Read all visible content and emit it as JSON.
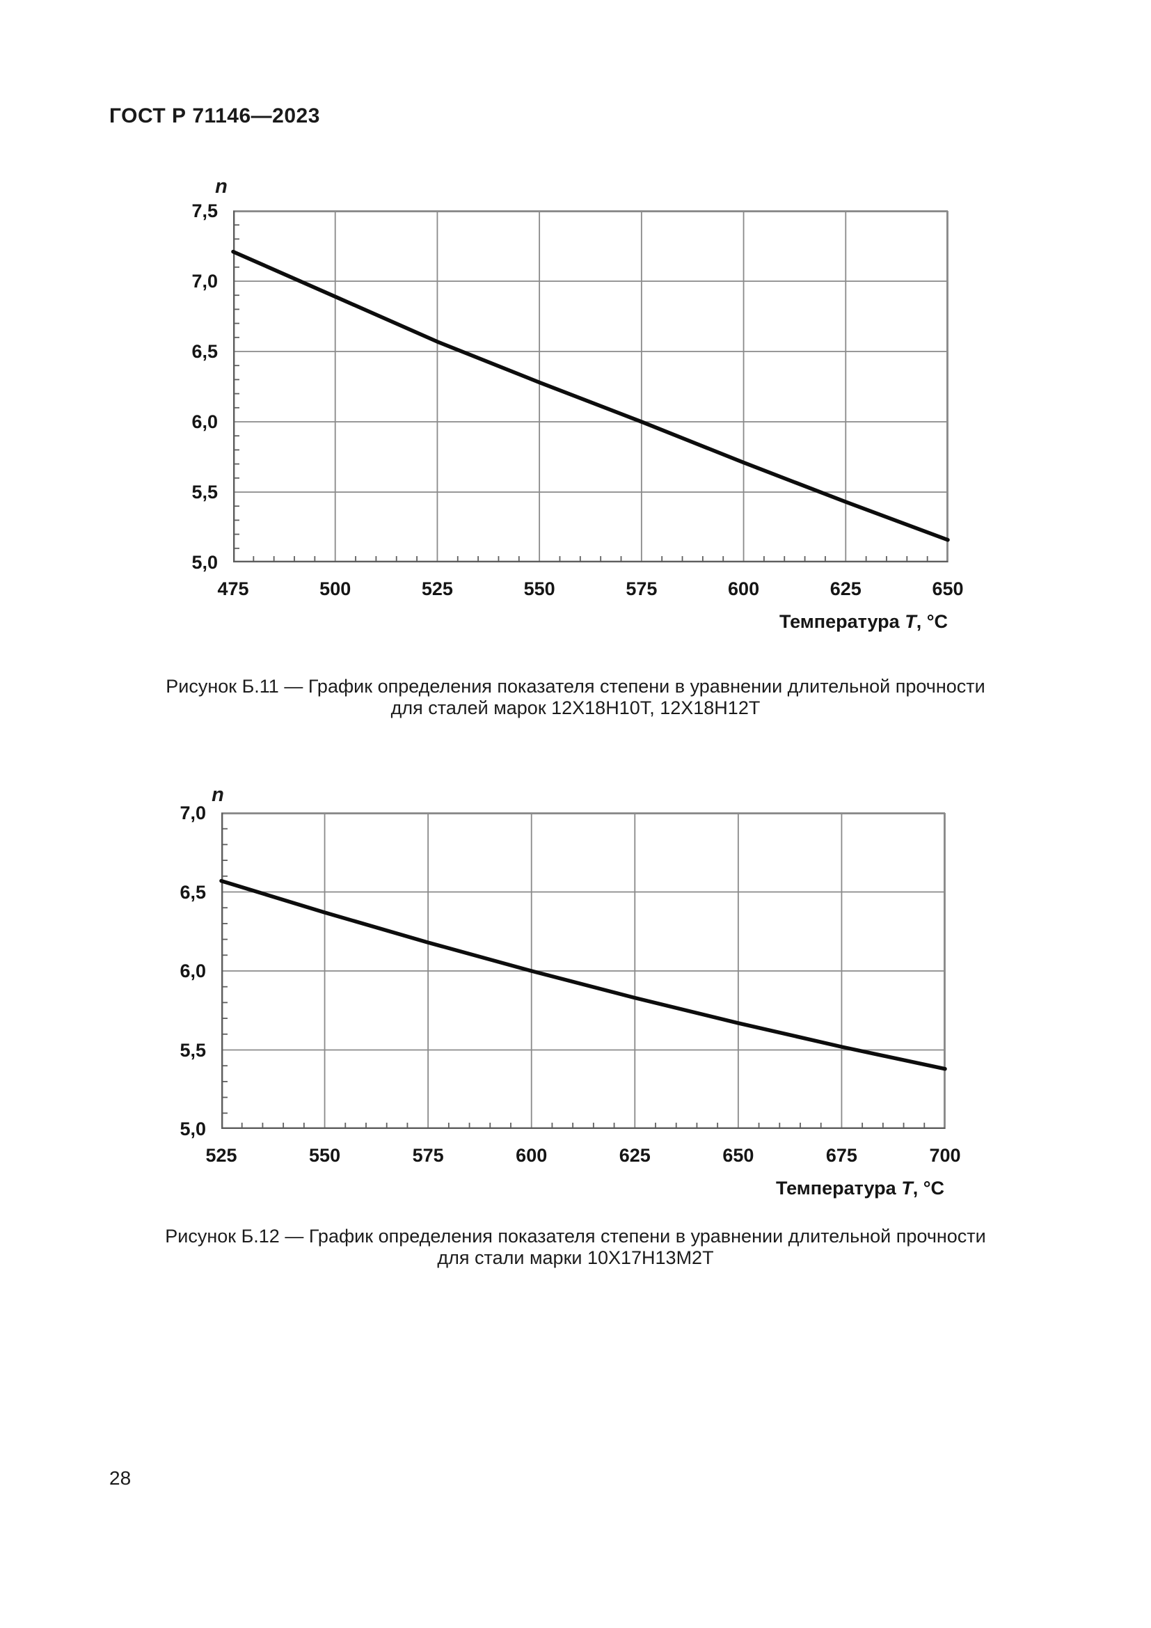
{
  "page": {
    "header": "ГОСТ Р 71146—2023",
    "page_number": "28"
  },
  "chart_data": [
    {
      "type": "line",
      "y_axis_label": "n",
      "x_axis_title": {
        "prefix": "Температура ",
        "variable": "T",
        "suffix": ", °С"
      },
      "x_range": [
        475,
        650
      ],
      "y_range": [
        5.0,
        7.5
      ],
      "x_minor_step": 5,
      "y_minor_step": 0.1,
      "grid": "on",
      "x_ticks": [
        {
          "v": 475,
          "label": "475"
        },
        {
          "v": 500,
          "label": "500"
        },
        {
          "v": 525,
          "label": "525"
        },
        {
          "v": 550,
          "label": "550"
        },
        {
          "v": 575,
          "label": "575"
        },
        {
          "v": 600,
          "label": "600"
        },
        {
          "v": 625,
          "label": "625"
        },
        {
          "v": 650,
          "label": "650"
        }
      ],
      "y_ticks": [
        {
          "v": 5.0,
          "label": "5,0"
        },
        {
          "v": 5.5,
          "label": "5,5"
        },
        {
          "v": 6.0,
          "label": "6,0"
        },
        {
          "v": 6.5,
          "label": "6,5"
        },
        {
          "v": 7.0,
          "label": "7,0"
        },
        {
          "v": 7.5,
          "label": "7,5"
        }
      ],
      "series": [
        {
          "name": "n(T) для сталей 12Х18Н10Т, 12Х18Н12Т",
          "x": [
            475,
            500,
            525,
            550,
            575,
            600,
            625,
            650
          ],
          "y": [
            7.21,
            6.89,
            6.57,
            6.28,
            6.0,
            5.71,
            5.43,
            5.16
          ]
        }
      ],
      "caption_line1": "Рисунок Б.11 — График определения показателя степени в уравнении длительной прочности",
      "caption_line2": "для сталей марок 12Х18Н10Т, 12Х18Н12Т"
    },
    {
      "type": "line",
      "y_axis_label": "n",
      "x_axis_title": {
        "prefix": "Температура ",
        "variable": "T",
        "suffix": ", °С"
      },
      "x_range": [
        525,
        700
      ],
      "y_range": [
        5.0,
        7.0
      ],
      "x_minor_step": 5,
      "y_minor_step": 0.1,
      "grid": "on",
      "x_ticks": [
        {
          "v": 525,
          "label": "525"
        },
        {
          "v": 550,
          "label": "550"
        },
        {
          "v": 575,
          "label": "575"
        },
        {
          "v": 600,
          "label": "600"
        },
        {
          "v": 625,
          "label": "625"
        },
        {
          "v": 650,
          "label": "650"
        },
        {
          "v": 675,
          "label": "675"
        },
        {
          "v": 700,
          "label": "700"
        }
      ],
      "y_ticks": [
        {
          "v": 5.0,
          "label": "5,0"
        },
        {
          "v": 5.5,
          "label": "5,5"
        },
        {
          "v": 6.0,
          "label": "6,0"
        },
        {
          "v": 6.5,
          "label": "6,5"
        },
        {
          "v": 7.0,
          "label": "7,0"
        }
      ],
      "series": [
        {
          "name": "n(T) для стали 10Х17Н13М2Т",
          "x": [
            525,
            550,
            575,
            600,
            625,
            650,
            675,
            700
          ],
          "y": [
            6.57,
            6.37,
            6.18,
            6.0,
            5.83,
            5.67,
            5.52,
            5.38
          ]
        }
      ],
      "caption_line1": "Рисунок Б.12 — График определения показателя степени в уравнении длительной прочности",
      "caption_line2": "для стали марки 10Х17Н13М2Т"
    }
  ]
}
